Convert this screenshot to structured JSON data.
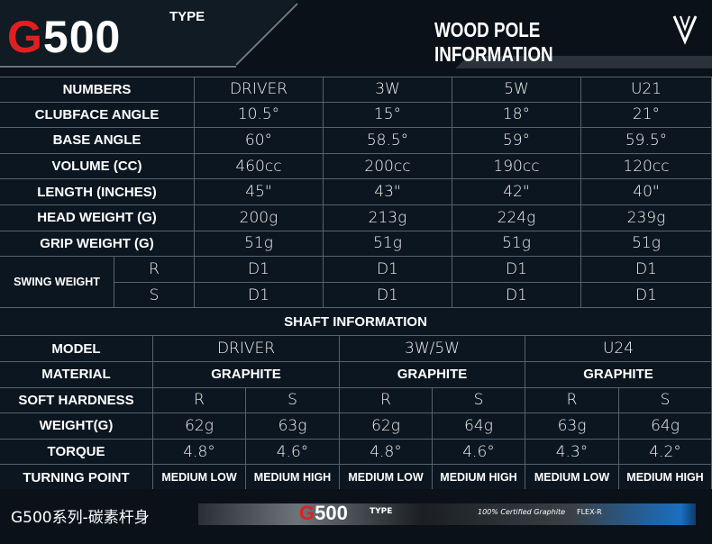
{
  "header": {
    "logo": "G500",
    "logo_suffix": "TYPE",
    "title": "WOOD POLE INFORMATION"
  },
  "club_table": {
    "columns": [
      "NUMBERS",
      "DRIVER",
      "3W",
      "5W",
      "U21"
    ],
    "rows": [
      {
        "label": "CLUBFACE ANGLE",
        "values": [
          "10.5°",
          "15°",
          "18°",
          "21°"
        ]
      },
      {
        "label": "BASE ANGLE",
        "values": [
          "60°",
          "58.5°",
          "59°",
          "59.5°"
        ]
      },
      {
        "label": "VOLUME (CC)",
        "values": [
          "460cc",
          "200cc",
          "190cc",
          "120cc"
        ]
      },
      {
        "label": "LENGTH (INCHES)",
        "values": [
          "45\"",
          "43\"",
          "42\"",
          "40\""
        ]
      },
      {
        "label": "HEAD WEIGHT (G)",
        "values": [
          "200g",
          "213g",
          "224g",
          "239g"
        ]
      },
      {
        "label": "GRIP WEIGHT (G)",
        "values": [
          "51g",
          "51g",
          "51g",
          "51g"
        ]
      }
    ],
    "swing_weight": {
      "label": "SWING WEIGHT",
      "rows": [
        {
          "flex": "R",
          "values": [
            "D1",
            "D1",
            "D1",
            "D1"
          ]
        },
        {
          "flex": "S",
          "values": [
            "D1",
            "D1",
            "D1",
            "D1"
          ]
        }
      ]
    }
  },
  "shaft_table": {
    "title": "SHAFT INFORMATION",
    "model": {
      "label": "MODEL",
      "values": [
        "DRIVER",
        "3W/5W",
        "U24"
      ]
    },
    "material": {
      "label": "MATERIAL",
      "values": [
        "GRAPHITE",
        "GRAPHITE",
        "GRAPHITE"
      ]
    },
    "rows": [
      {
        "label": "SOFT HARDNESS",
        "values": [
          "R",
          "S",
          "R",
          "S",
          "R",
          "S"
        ]
      },
      {
        "label": "WEIGHT(G)",
        "values": [
          "62g",
          "63g",
          "62g",
          "64g",
          "63g",
          "64g"
        ]
      },
      {
        "label": "TORQUE",
        "values": [
          "4.8°",
          "4.6°",
          "4.8°",
          "4.6°",
          "4.3°",
          "4.2°"
        ]
      },
      {
        "label": "TURNING POINT",
        "values": [
          "MEDIUM LOW",
          "MEDIUM HIGH",
          "MEDIUM LOW",
          "MEDIUM HIGH",
          "MEDIUM LOW",
          "MEDIUM HIGH"
        ]
      }
    ]
  },
  "footer": {
    "caption": "G500系列-碳素杆身",
    "shaft_logo": "G500",
    "shaft_logo_suffix": "TYPE",
    "shaft_text": "100% Certified Graphite",
    "flex": "FLEX-R"
  }
}
